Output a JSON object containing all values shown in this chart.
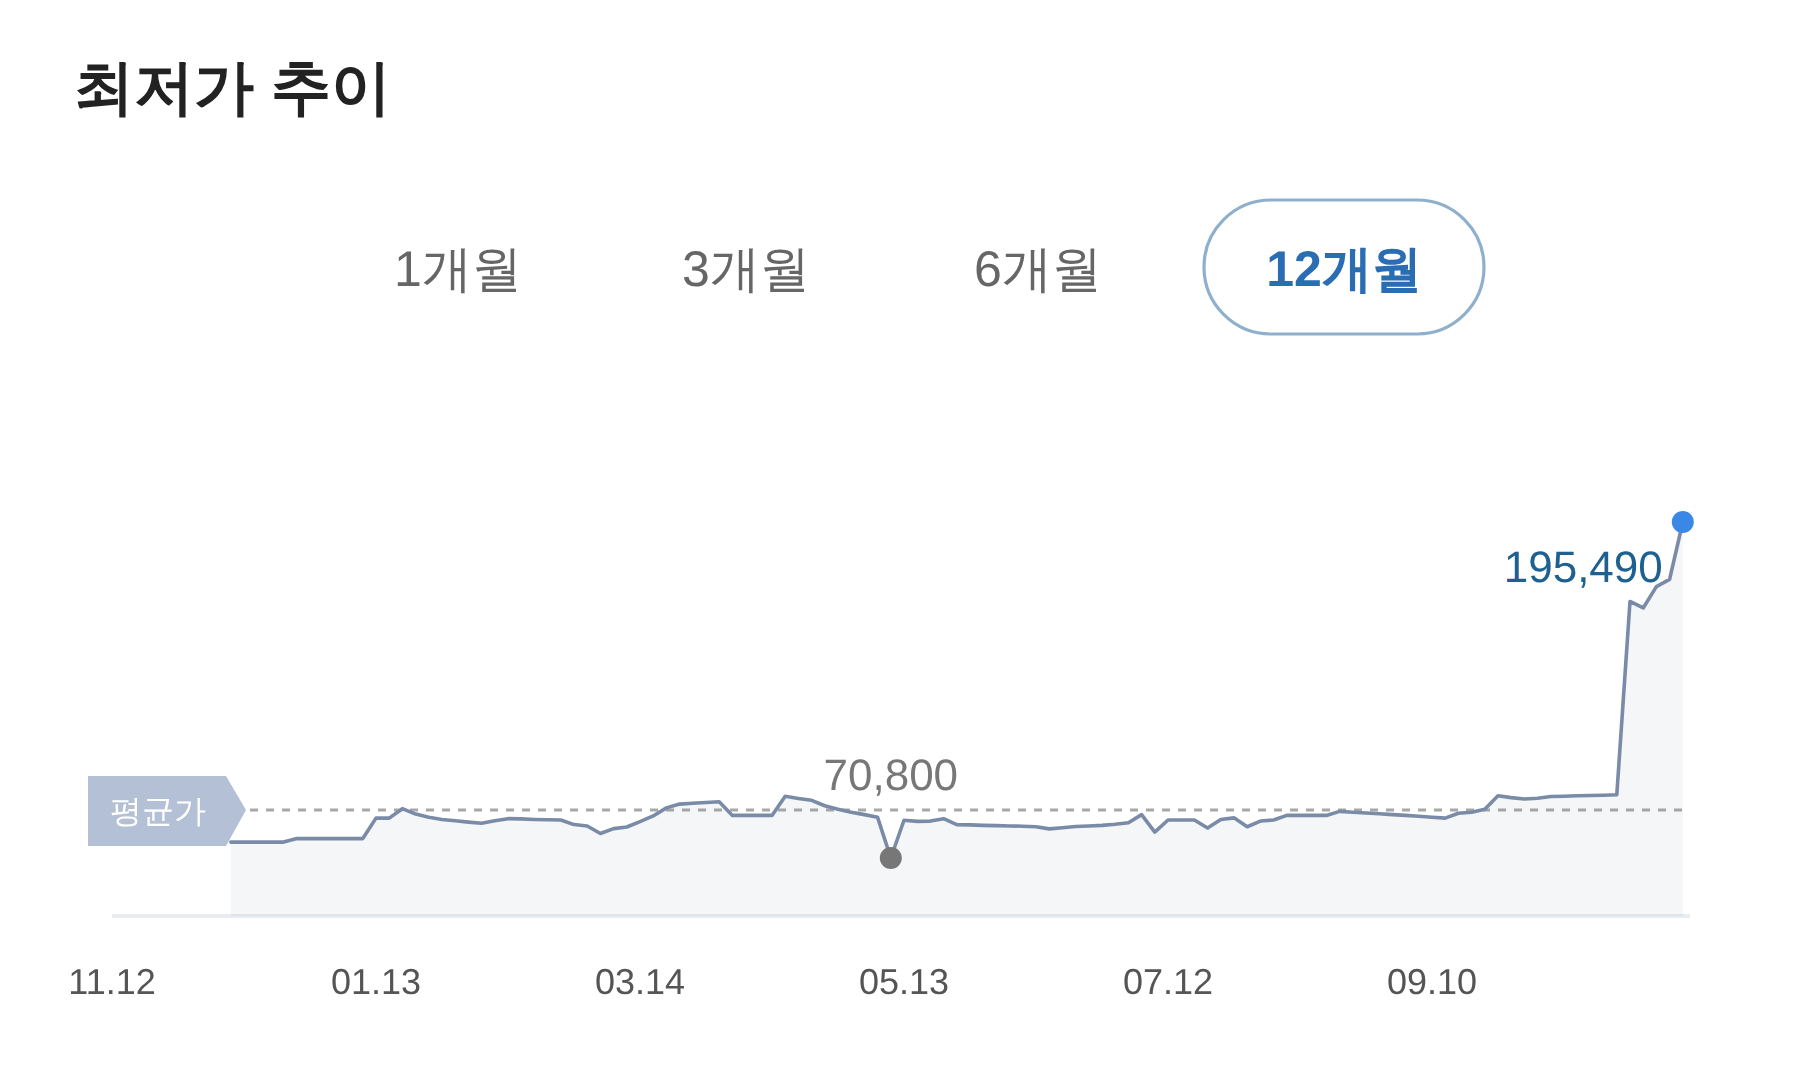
{
  "chart_data": {
    "type": "area",
    "title": "최저가 추이",
    "annotations": [
      "1개월",
      "3개월",
      "6개월",
      "12개월"
    ],
    "categories": [
      "11.12",
      null,
      null,
      null,
      null,
      null,
      null,
      null,
      null,
      null,
      null,
      null,
      null,
      null,
      null,
      null,
      null,
      null,
      null,
      null,
      "01.13",
      null,
      null,
      null,
      null,
      null,
      null,
      null,
      null,
      null,
      null,
      null,
      null,
      null,
      null,
      null,
      null,
      null,
      null,
      null,
      "03.14",
      null,
      null,
      null,
      null,
      null,
      null,
      null,
      null,
      null,
      null,
      null,
      null,
      null,
      null,
      null,
      null,
      null,
      null,
      null,
      "05.13",
      null,
      null,
      null,
      null,
      null,
      null,
      null,
      null,
      null,
      null,
      null,
      null,
      null,
      null,
      null,
      null,
      null,
      null,
      null,
      "07.12",
      null,
      null,
      null,
      null,
      null,
      null,
      null,
      null,
      null,
      null,
      null,
      null,
      null,
      null,
      null,
      null,
      null,
      null,
      null,
      "09.10",
      null,
      null,
      null,
      null,
      null,
      null,
      null,
      null,
      null,
      null,
      null,
      null,
      null,
      null,
      null,
      null,
      null,
      null,
      null
    ],
    "values": [
      null,
      null,
      null,
      null,
      null,
      null,
      null,
      null,
      null,
      76700,
      76700,
      76700,
      76700,
      76700,
      78000,
      78000,
      78000,
      78000,
      78000,
      78000,
      85600,
      85600,
      89100,
      87100,
      85900,
      85100,
      84600,
      84100,
      83700,
      84600,
      85400,
      85300,
      85100,
      85000,
      84900,
      83200,
      82700,
      79900,
      81700,
      82300,
      84300,
      86400,
      89400,
      90800,
      91100,
      91400,
      91700,
      86600,
      86600,
      86600,
      86600,
      93700,
      92900,
      92200,
      90200,
      88900,
      87800,
      86900,
      85900,
      70800,
      84800,
      84400,
      84500,
      85400,
      83200,
      83100,
      82900,
      82800,
      82700,
      82600,
      82400,
      81600,
      82000,
      82500,
      82700,
      82900,
      83300,
      83900,
      86900,
      80400,
      84900,
      84900,
      84900,
      81900,
      85100,
      85700,
      82400,
      84500,
      84900,
      86600,
      86600,
      86600,
      86600,
      88100,
      87800,
      87500,
      87200,
      86900,
      86600,
      86300,
      85900,
      85600,
      87400,
      87800,
      88900,
      93900,
      93200,
      92700,
      93000,
      93600,
      93700,
      93900,
      94000,
      94100,
      94300,
      166000,
      163600,
      171500,
      174200,
      195490
    ],
    "value_labels": [
      null,
      null,
      null,
      null,
      null,
      null,
      null,
      null,
      null,
      null,
      null,
      null,
      null,
      null,
      null,
      null,
      null,
      null,
      null,
      null,
      null,
      null,
      null,
      null,
      null,
      null,
      null,
      null,
      null,
      null,
      null,
      null,
      null,
      null,
      null,
      null,
      null,
      null,
      null,
      null,
      null,
      null,
      null,
      null,
      null,
      null,
      null,
      null,
      null,
      null,
      null,
      null,
      null,
      null,
      null,
      null,
      null,
      null,
      null,
      "70,800",
      null,
      null,
      null,
      null,
      null,
      null,
      null,
      null,
      null,
      null,
      null,
      null,
      null,
      null,
      null,
      null,
      null,
      null,
      null,
      null,
      null,
      null,
      null,
      null,
      null,
      null,
      null,
      null,
      null,
      null,
      null,
      null,
      null,
      null,
      null,
      null,
      null,
      null,
      null,
      null,
      null,
      null,
      null,
      null,
      null,
      null,
      null,
      null,
      null,
      null,
      null,
      null,
      null,
      null,
      null,
      null,
      null,
      null,
      null,
      "195,490"
    ],
    "color": "#7a8ba8",
    "tick_labels": "x",
    "ref_lines": [
      {
        "axis": "y",
        "value": 88600,
        "label": "평균가",
        "color": "#a8a8a8",
        "line_style": "dashed"
      }
    ]
  }
}
